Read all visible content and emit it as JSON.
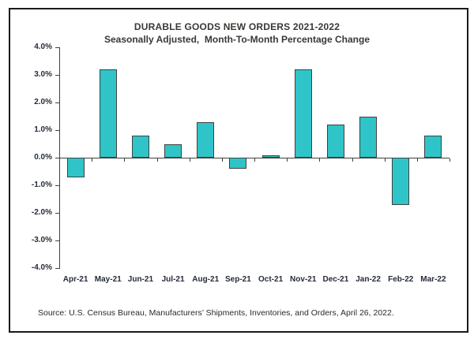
{
  "chart_data": {
    "type": "bar",
    "title": "DURABLE GOODS NEW ORDERS 2021-2022",
    "subtitle": "Seasonally Adjusted,  Month-To-Month Percentage Change",
    "categories": [
      "Apr-21",
      "May-21",
      "Jun-21",
      "Jul-21",
      "Aug-21",
      "Sep-21",
      "Oct-21",
      "Nov-21",
      "Dec-21",
      "Jan-22",
      "Feb-22",
      "Mar-22"
    ],
    "values": [
      -0.7,
      3.2,
      0.8,
      0.5,
      1.3,
      -0.4,
      0.1,
      3.2,
      1.2,
      1.5,
      -1.7,
      0.8
    ],
    "xlabel": "",
    "ylabel": "",
    "ylim": [
      -4.0,
      4.0
    ],
    "ytick_step": 1.0,
    "ytick_labels": [
      "4.0%",
      "3.0%",
      "2.0%",
      "1.0%",
      "0.0%",
      "-1.0%",
      "-2.0%",
      "-3.0%",
      "-4.0%"
    ],
    "grid": false,
    "legend": "none",
    "bar_color": "#2fc5c8",
    "bar_border_color": "#404040",
    "axis_color": "#404040"
  },
  "source_note": "Source: U.S. Census Bureau, Manufacturers’ Shipments, Inventories, and Orders, April 26, 2022."
}
